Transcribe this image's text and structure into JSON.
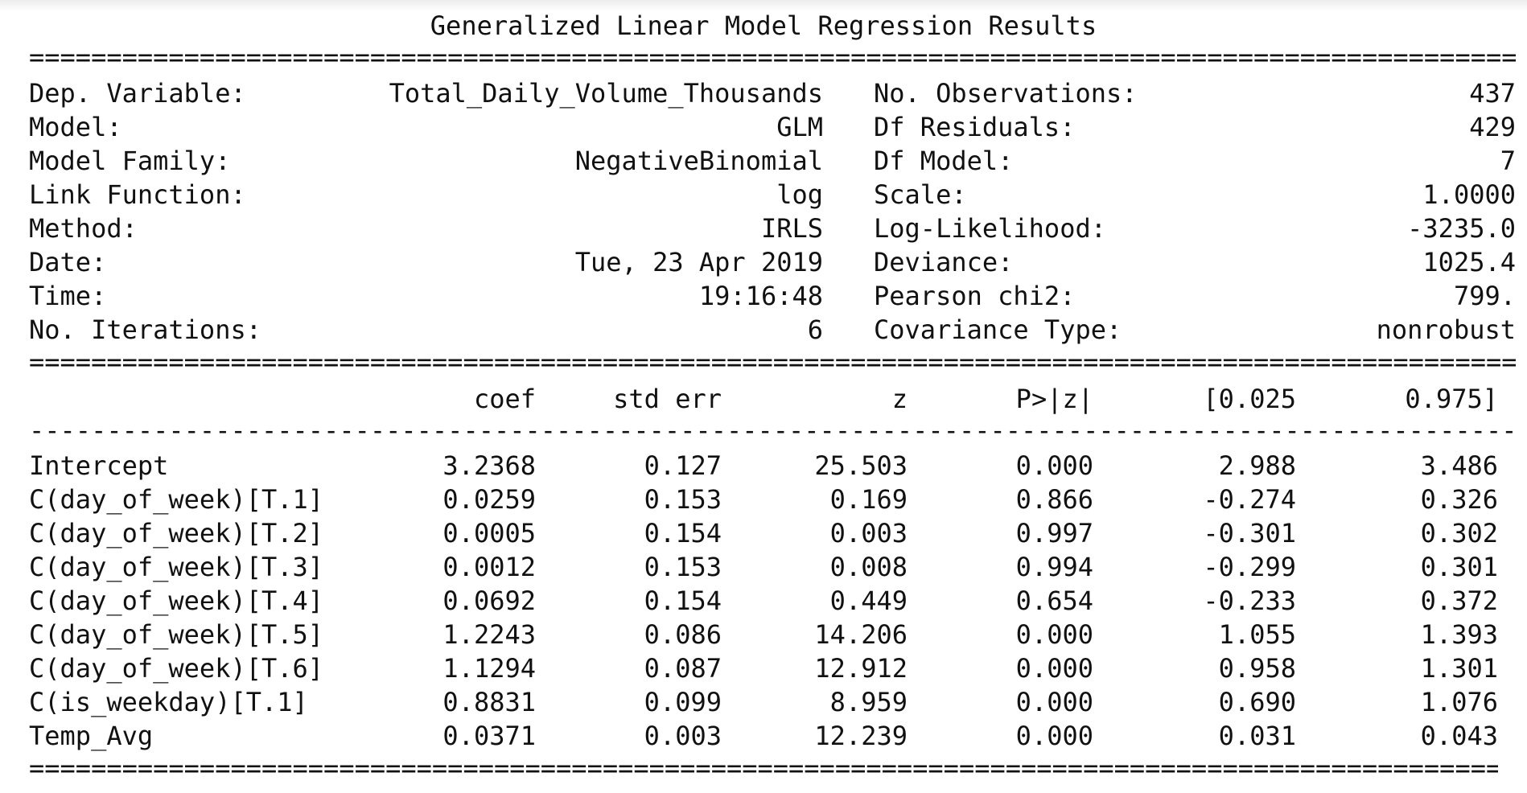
{
  "title": "Generalized Linear Model Regression Results",
  "rules": {
    "double": "==========================================================================================================",
    "single": "----------------------------------------------------------------------------------------------------------"
  },
  "info_left": [
    {
      "label": "Dep. Variable:",
      "value": "Total_Daily_Volume_Thousands"
    },
    {
      "label": "Model:",
      "value": "GLM"
    },
    {
      "label": "Model Family:",
      "value": "NegativeBinomial"
    },
    {
      "label": "Link Function:",
      "value": "log"
    },
    {
      "label": "Method:",
      "value": "IRLS"
    },
    {
      "label": "Date:",
      "value": "Tue, 23 Apr 2019"
    },
    {
      "label": "Time:",
      "value": "19:16:48"
    },
    {
      "label": "No. Iterations:",
      "value": "6"
    }
  ],
  "info_right": [
    {
      "label": "No. Observations:",
      "value": "437"
    },
    {
      "label": "Df Residuals:",
      "value": "429"
    },
    {
      "label": "Df Model:",
      "value": "7"
    },
    {
      "label": "Scale:",
      "value": "1.0000"
    },
    {
      "label": "Log-Likelihood:",
      "value": "-3235.0"
    },
    {
      "label": "Deviance:",
      "value": "1025.4"
    },
    {
      "label": "Pearson chi2:",
      "value": "799."
    },
    {
      "label": "Covariance Type:",
      "value": "nonrobust"
    }
  ],
  "coef_table": {
    "headers": [
      "coef",
      "std err",
      "z",
      "P>|z|",
      "[0.025",
      "0.975]"
    ],
    "rows": [
      {
        "name": "Intercept",
        "cells": [
          "3.2368",
          "0.127",
          "25.503",
          "0.000",
          "2.988",
          "3.486"
        ]
      },
      {
        "name": "C(day_of_week)[T.1]",
        "cells": [
          "0.0259",
          "0.153",
          "0.169",
          "0.866",
          "-0.274",
          "0.326"
        ]
      },
      {
        "name": "C(day_of_week)[T.2]",
        "cells": [
          "0.0005",
          "0.154",
          "0.003",
          "0.997",
          "-0.301",
          "0.302"
        ]
      },
      {
        "name": "C(day_of_week)[T.3]",
        "cells": [
          "0.0012",
          "0.153",
          "0.008",
          "0.994",
          "-0.299",
          "0.301"
        ]
      },
      {
        "name": "C(day_of_week)[T.4]",
        "cells": [
          "0.0692",
          "0.154",
          "0.449",
          "0.654",
          "-0.233",
          "0.372"
        ]
      },
      {
        "name": "C(day_of_week)[T.5]",
        "cells": [
          "1.2243",
          "0.086",
          "14.206",
          "0.000",
          "1.055",
          "1.393"
        ]
      },
      {
        "name": "C(day_of_week)[T.6]",
        "cells": [
          "1.1294",
          "0.087",
          "12.912",
          "0.000",
          "0.958",
          "1.301"
        ]
      },
      {
        "name": "C(is_weekday)[T.1]",
        "cells": [
          "0.8831",
          "0.099",
          "8.959",
          "0.000",
          "0.690",
          "1.076"
        ]
      },
      {
        "name": "Temp_Avg",
        "cells": [
          "0.0371",
          "0.003",
          "12.239",
          "0.000",
          "0.031",
          "0.043"
        ]
      }
    ]
  }
}
